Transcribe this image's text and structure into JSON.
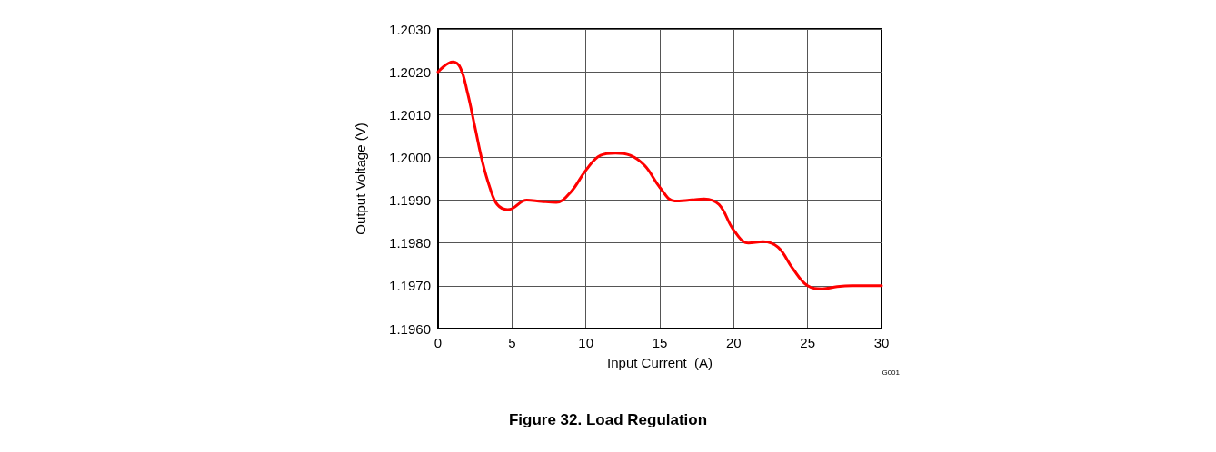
{
  "chart_data": {
    "type": "line",
    "title": "Figure 32. Load Regulation",
    "xlabel": "Input Current  (A)",
    "ylabel": "Output Voltage (V)",
    "annotations": [
      "G001"
    ],
    "x": [
      0,
      1,
      1.5,
      2,
      2.5,
      3,
      3.5,
      4,
      4.7,
      5,
      6,
      7,
      8,
      9,
      10,
      11,
      12,
      13,
      14,
      15,
      16,
      17,
      18,
      19,
      20,
      21,
      22,
      23,
      24,
      25,
      26,
      27,
      28,
      30
    ],
    "series": [
      {
        "color": "#ff0000",
        "values": [
          1.202,
          1.20223,
          1.2021,
          1.2015,
          1.2007,
          1.1999,
          1.1993,
          1.1989,
          1.19878,
          1.1988,
          1.199,
          1.19897,
          1.19895,
          1.1992,
          1.1997,
          1.20005,
          1.2001,
          1.20005,
          1.1998,
          1.1993,
          1.19898,
          1.199,
          1.19903,
          1.1989,
          1.1983,
          1.198,
          1.19803,
          1.1979,
          1.1974,
          1.197,
          1.19693,
          1.19698,
          1.197,
          1.197
        ]
      }
    ],
    "xlim": [
      0,
      30
    ],
    "xticks": [
      0,
      5,
      10,
      15,
      20,
      25,
      30
    ],
    "ylim": [
      1.196,
      1.203
    ],
    "yticks": [
      {
        "value": 1.196,
        "label": "1.1960"
      },
      {
        "value": 1.197,
        "label": "1.1970"
      },
      {
        "value": 1.198,
        "label": "1.1980"
      },
      {
        "value": 1.199,
        "label": "1.1990"
      },
      {
        "value": 1.2,
        "label": "1.2000"
      },
      {
        "value": 1.201,
        "label": "1.2010"
      },
      {
        "value": 1.202,
        "label": "1.2020"
      },
      {
        "value": 1.203,
        "label": "1.2030"
      }
    ],
    "grid": true,
    "line_style": "solid",
    "marker": "none"
  }
}
